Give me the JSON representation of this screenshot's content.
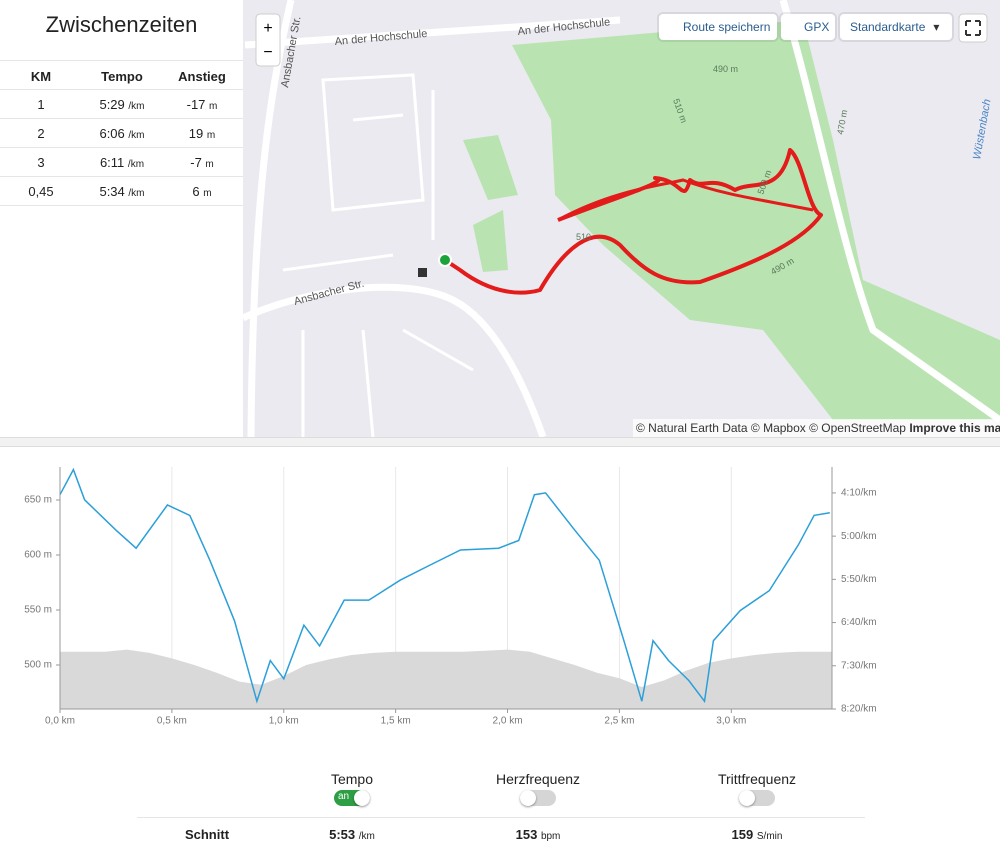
{
  "splits": {
    "title": "Zwischenzeiten",
    "columns": [
      "KM",
      "Tempo",
      "Anstieg"
    ],
    "rows": [
      {
        "km": "1",
        "tempo": "5:29",
        "tempo_unit": "/km",
        "climb": "-17",
        "climb_unit": "m"
      },
      {
        "km": "2",
        "tempo": "6:06",
        "tempo_unit": "/km",
        "climb": "19",
        "climb_unit": "m"
      },
      {
        "km": "3",
        "tempo": "6:11",
        "tempo_unit": "/km",
        "climb": "-7",
        "climb_unit": "m"
      },
      {
        "km": "0,45",
        "tempo": "5:34",
        "tempo_unit": "/km",
        "climb": "6",
        "climb_unit": "m"
      }
    ]
  },
  "map": {
    "zoom_in": "+",
    "zoom_out": "−",
    "save_route": "Route speichern",
    "gpx": "GPX",
    "map_style": "Standardkarte",
    "labels": {
      "street_1": "An der Hochschule",
      "street_2": "An der Hochschule",
      "street_3": "Ansbacher Str.",
      "street_4": "Ansbacher Str.",
      "contour_1": "490 m",
      "contour_2": "510 m",
      "contour_3": "500 m",
      "contour_4": "470 m",
      "contour_5": "490 m",
      "contour_6": "510",
      "stream": "Wüstenbach"
    },
    "attribution": "© Natural Earth Data © Mapbox © OpenStreetMap",
    "improve": "Improve this map"
  },
  "chart_data": {
    "type": "line",
    "xlim": [
      0,
      3.45
    ],
    "xticks": [
      {
        "value": 0,
        "label": "0,0 km"
      },
      {
        "value": 0.5,
        "label": "0,5 km"
      },
      {
        "value": 1,
        "label": "1,0 km"
      },
      {
        "value": 1.5,
        "label": "1,5 km"
      },
      {
        "value": 2,
        "label": "2,0 km"
      },
      {
        "value": 2.5,
        "label": "2,5 km"
      },
      {
        "value": 3,
        "label": "3,0 km"
      }
    ],
    "ylim": [
      460,
      680
    ],
    "yticks": [
      {
        "value": 500,
        "label": "500 m"
      },
      {
        "value": 550,
        "label": "550 m"
      },
      {
        "value": 600,
        "label": "600 m"
      },
      {
        "value": 650,
        "label": "650 m"
      }
    ],
    "y2lim": [
      500,
      220
    ],
    "y2ticks": [
      {
        "value": 500,
        "label": "8:20/km"
      },
      {
        "value": 450,
        "label": "7:30/km"
      },
      {
        "value": 400,
        "label": "6:40/km"
      },
      {
        "value": 350,
        "label": "5:50/km"
      },
      {
        "value": 300,
        "label": "5:00/km"
      },
      {
        "value": 250,
        "label": "4:10/km"
      }
    ],
    "grid": true,
    "series": [
      {
        "area": true,
        "color": "#d9d9d9",
        "x": [
          0,
          0.1,
          0.2,
          0.3,
          0.4,
          0.5,
          0.6,
          0.7,
          0.8,
          0.9,
          1.0,
          1.1,
          1.2,
          1.3,
          1.4,
          1.5,
          1.6,
          1.7,
          1.8,
          1.9,
          2.0,
          2.1,
          2.2,
          2.3,
          2.4,
          2.5,
          2.6,
          2.7,
          2.8,
          2.9,
          3.0,
          3.1,
          3.2,
          3.3,
          3.4,
          3.45
        ],
        "values": [
          512,
          512,
          512,
          514,
          511,
          506,
          500,
          493,
          485,
          482,
          490,
          500,
          505,
          509,
          511,
          512,
          512,
          512,
          512,
          513,
          514,
          512,
          506,
          500,
          493,
          488,
          480,
          486,
          495,
          502,
          506,
          509,
          511,
          512,
          512,
          512
        ]
      },
      {
        "name": "Tempo",
        "axis": "y2",
        "color": "#2b9fd9",
        "x": [
          0,
          0.06,
          0.11,
          0.25,
          0.34,
          0.48,
          0.58,
          0.67,
          0.78,
          0.88,
          0.94,
          1.0,
          1.09,
          1.16,
          1.27,
          1.38,
          1.52,
          1.65,
          1.79,
          1.96,
          2.05,
          2.12,
          2.17,
          2.3,
          2.41,
          2.52,
          2.6,
          2.65,
          2.72,
          2.81,
          2.88,
          2.92,
          3.04,
          3.17,
          3.3,
          3.37,
          3.44
        ],
        "values": [
          252,
          223,
          258,
          293,
          314,
          264,
          276,
          328,
          398,
          491,
          444,
          465,
          403,
          427,
          374,
          374,
          351,
          334,
          316,
          314,
          305,
          252,
          250,
          293,
          328,
          421,
          491,
          421,
          444,
          467,
          491,
          421,
          386,
          363,
          310,
          276,
          273
        ]
      }
    ]
  },
  "toggles": [
    {
      "label": "Tempo",
      "on": true,
      "on_label": "an"
    },
    {
      "label": "Herzfrequenz",
      "on": false
    },
    {
      "label": "Trittfrequenz",
      "on": false
    }
  ],
  "averages": {
    "label": "Schnitt",
    "items": [
      {
        "value": "5:53",
        "unit": "/km"
      },
      {
        "value": "153",
        "unit": "bpm"
      },
      {
        "value": "159",
        "unit": "S/min"
      }
    ]
  }
}
